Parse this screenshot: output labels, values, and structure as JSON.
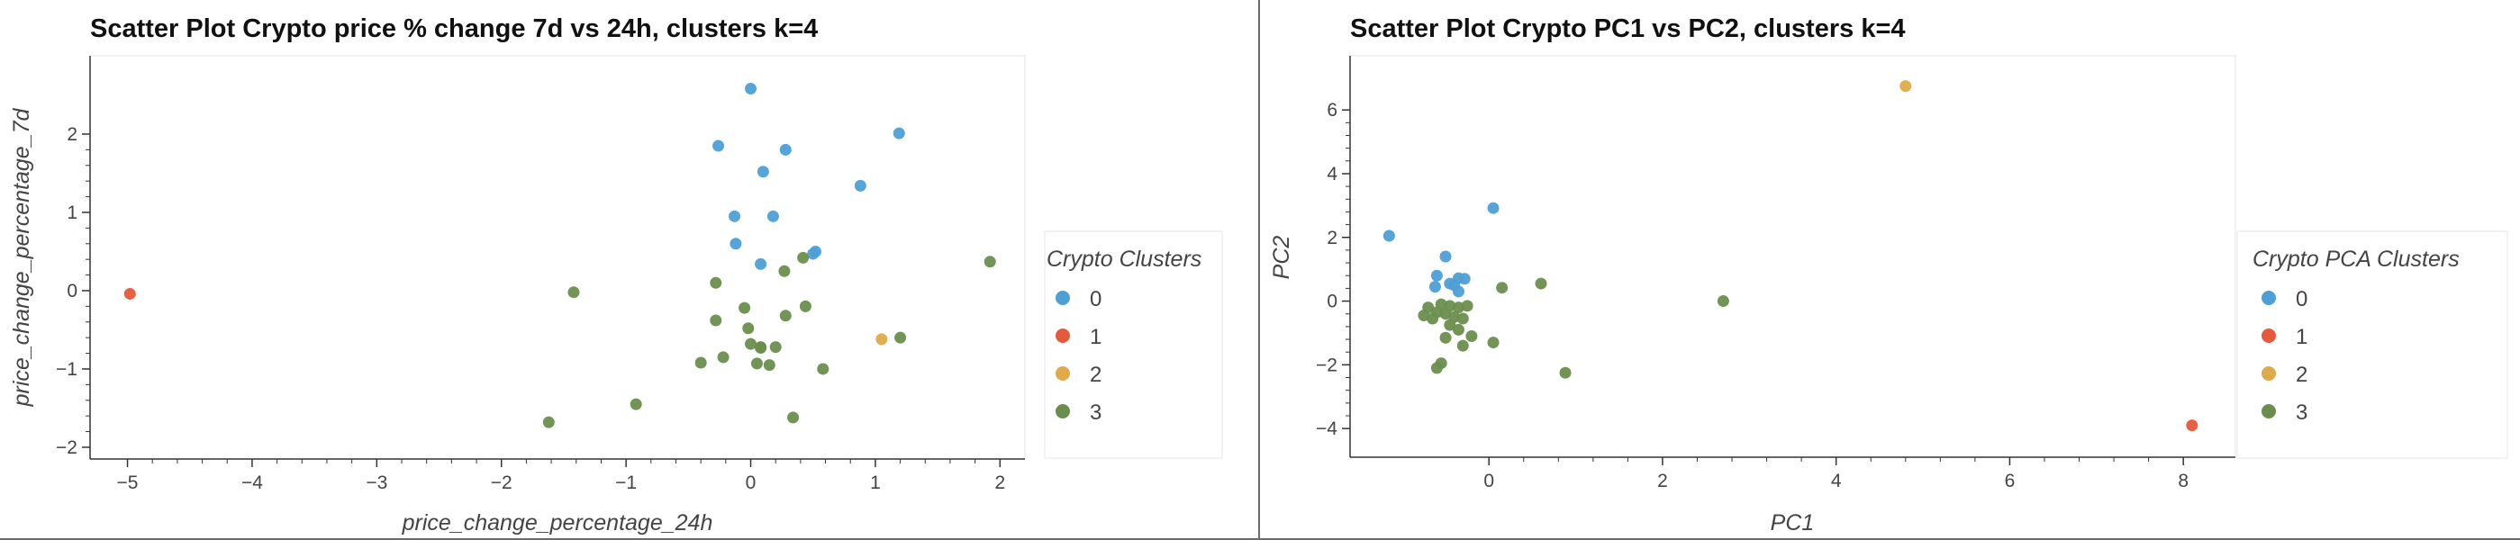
{
  "chart_data": [
    {
      "type": "scatter",
      "title": "Scatter Plot Crypto price % change 7d vs 24h, clusters k=4",
      "xlabel": "price_change_percentage_24h",
      "ylabel": "price_change_percentage_7d",
      "xlim": [
        -5.3,
        2.2
      ],
      "ylim": [
        -2.15,
        3.0
      ],
      "xticks": [
        -5,
        -4,
        -3,
        -2,
        -1,
        0,
        1,
        2
      ],
      "yticks": [
        -2,
        -1,
        0,
        1,
        2
      ],
      "legend": {
        "title": "Crypto Clusters",
        "position": "right"
      },
      "series": [
        {
          "name": "0",
          "color": "#4e9fd6",
          "points": [
            [
              0.0,
              2.58
            ],
            [
              -0.26,
              1.85
            ],
            [
              0.28,
              1.8
            ],
            [
              1.19,
              2.01
            ],
            [
              0.1,
              1.52
            ],
            [
              0.88,
              1.34
            ],
            [
              -0.13,
              0.95
            ],
            [
              0.18,
              0.95
            ],
            [
              -0.12,
              0.6
            ],
            [
              0.08,
              0.34
            ],
            [
              0.52,
              0.5
            ],
            [
              0.5,
              0.47
            ]
          ]
        },
        {
          "name": "1",
          "color": "#e45a3d",
          "points": [
            [
              -4.98,
              -0.04
            ]
          ]
        },
        {
          "name": "2",
          "color": "#dfaa4b",
          "points": [
            [
              1.05,
              -0.62
            ]
          ]
        },
        {
          "name": "3",
          "color": "#6b8e4e",
          "points": [
            [
              1.92,
              0.37
            ],
            [
              -1.42,
              -0.02
            ],
            [
              -0.28,
              0.1
            ],
            [
              0.27,
              0.25
            ],
            [
              0.42,
              0.42
            ],
            [
              0.44,
              -0.2
            ],
            [
              -0.05,
              -0.22
            ],
            [
              -0.28,
              -0.38
            ],
            [
              -0.02,
              -0.48
            ],
            [
              0.28,
              -0.32
            ],
            [
              0.0,
              -0.68
            ],
            [
              0.08,
              -0.72
            ],
            [
              0.2,
              -0.72
            ],
            [
              0.08,
              -0.73
            ],
            [
              -0.22,
              -0.85
            ],
            [
              -0.4,
              -0.92
            ],
            [
              0.05,
              -0.93
            ],
            [
              0.15,
              -0.95
            ],
            [
              0.58,
              -1.0
            ],
            [
              1.2,
              -0.6
            ],
            [
              -0.92,
              -1.45
            ],
            [
              0.34,
              -1.62
            ],
            [
              -1.62,
              -1.68
            ]
          ]
        }
      ]
    },
    {
      "type": "scatter",
      "title": "Scatter Plot Crypto PC1 vs PC2, clusters k=4",
      "xlabel": "PC1",
      "ylabel": "PC2",
      "xlim": [
        -1.6,
        8.6
      ],
      "ylim": [
        -4.9,
        7.7
      ],
      "xticks": [
        0,
        2,
        4,
        6,
        8
      ],
      "yticks": [
        -4,
        -2,
        0,
        2,
        4,
        6
      ],
      "legend": {
        "title": "Crypto PCA Clusters",
        "position": "right"
      },
      "series": [
        {
          "name": "0",
          "color": "#4e9fd6",
          "points": [
            [
              -1.15,
              2.05
            ],
            [
              0.05,
              2.92
            ],
            [
              -0.5,
              1.4
            ],
            [
              -0.6,
              0.8
            ],
            [
              -0.35,
              0.72
            ],
            [
              -0.28,
              0.7
            ],
            [
              -0.45,
              0.55
            ],
            [
              -0.4,
              0.5
            ],
            [
              -0.62,
              0.45
            ],
            [
              -0.35,
              0.3
            ]
          ]
        },
        {
          "name": "1",
          "color": "#e45a3d",
          "points": [
            [
              8.1,
              -3.9
            ]
          ]
        },
        {
          "name": "2",
          "color": "#dfaa4b",
          "points": [
            [
              4.8,
              6.75
            ]
          ]
        },
        {
          "name": "3",
          "color": "#6b8e4e",
          "points": [
            [
              -0.7,
              -0.2
            ],
            [
              -0.55,
              -0.1
            ],
            [
              -0.45,
              -0.15
            ],
            [
              -0.35,
              -0.2
            ],
            [
              -0.25,
              -0.15
            ],
            [
              -0.6,
              -0.35
            ],
            [
              -0.5,
              -0.4
            ],
            [
              -0.75,
              -0.45
            ],
            [
              -0.4,
              -0.5
            ],
            [
              -0.3,
              -0.55
            ],
            [
              -0.65,
              -0.55
            ],
            [
              -0.45,
              -0.75
            ],
            [
              -0.35,
              -0.9
            ],
            [
              -0.2,
              -1.1
            ],
            [
              -0.5,
              -1.15
            ],
            [
              -0.3,
              -1.4
            ],
            [
              0.05,
              -1.3
            ],
            [
              -0.55,
              -1.95
            ],
            [
              -0.6,
              -2.1
            ],
            [
              0.15,
              0.42
            ],
            [
              0.6,
              0.55
            ],
            [
              2.7,
              0.0
            ],
            [
              0.88,
              -2.25
            ]
          ]
        }
      ]
    }
  ]
}
